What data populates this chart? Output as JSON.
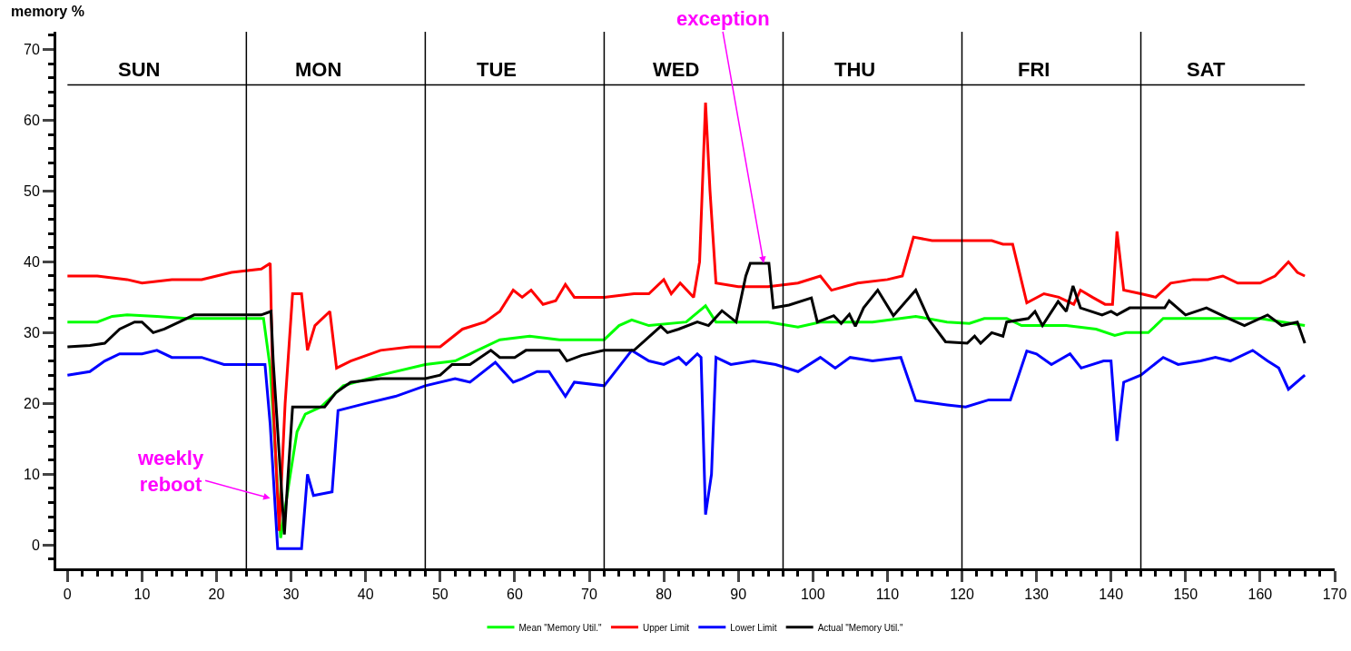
{
  "chart_data": {
    "type": "line",
    "ylabel": "memory %",
    "xlim": [
      -1.5,
      170
    ],
    "ylim": [
      -3.3,
      72.5
    ],
    "xticks": [
      0,
      10,
      20,
      30,
      40,
      50,
      60,
      70,
      80,
      90,
      100,
      110,
      120,
      130,
      140,
      150,
      160,
      170
    ],
    "yticks": [
      0,
      10,
      20,
      30,
      40,
      50,
      60,
      70
    ],
    "grid": false,
    "legend": "bottom",
    "marker": "none",
    "line_style": "solid",
    "ref_lines": [
      {
        "axis": "x",
        "value": 24
      },
      {
        "axis": "x",
        "value": 48
      },
      {
        "axis": "x",
        "value": 72
      },
      {
        "axis": "x",
        "value": 96
      },
      {
        "axis": "x",
        "value": 120
      },
      {
        "axis": "x",
        "value": 144
      },
      {
        "axis": "y",
        "value": 65
      }
    ],
    "annotations": [
      "SUN",
      "MON",
      "TUE",
      "WED",
      "THU",
      "FRI",
      "SAT",
      {
        "text": "weekly\nreboot",
        "x": 27.2,
        "y": 6.6
      },
      {
        "text": "exception",
        "x": 93.4,
        "y": 39.8
      }
    ],
    "series": [
      {
        "name": "Mean \"Memory Util.\"",
        "color": "#00ff00",
        "x": [
          0,
          4,
          6,
          8,
          12,
          16,
          20,
          26.3,
          27.2,
          28.6,
          29.9,
          30.8,
          31.9,
          34,
          37,
          42,
          48,
          52,
          55,
          58,
          62,
          66,
          72,
          74,
          75.7,
          78,
          83,
          85.6,
          87,
          94,
          98,
          101,
          108,
          113.8,
          118,
          121,
          123,
          126,
          128,
          134,
          138,
          140.5,
          142,
          145,
          147,
          152,
          160,
          166
        ],
        "values": [
          31.5,
          31.5,
          32.3,
          32.5,
          32.3,
          32,
          32,
          32,
          25,
          1,
          10,
          16,
          18.5,
          19.5,
          22.5,
          24,
          25.5,
          26,
          27.5,
          29,
          29.5,
          29,
          29,
          31,
          31.8,
          31,
          31.5,
          33.8,
          31.5,
          31.5,
          30.8,
          31.5,
          31.5,
          32.3,
          31.5,
          31.3,
          32,
          32,
          31,
          31,
          30.5,
          29.6,
          30,
          30,
          32,
          32,
          32,
          31
        ]
      },
      {
        "name": "Upper Limit",
        "color": "#ff0000",
        "x": [
          0,
          4,
          8,
          10,
          14,
          18,
          20,
          22,
          26,
          27.2,
          27.6,
          28.4,
          29.2,
          30.2,
          31.4,
          32.2,
          33.2,
          35.2,
          36.1,
          38,
          42,
          46,
          50,
          53,
          56,
          58,
          59.8,
          61,
          62.2,
          63.8,
          65.5,
          66.8,
          68,
          72,
          76,
          78,
          80,
          81,
          82.2,
          84,
          84.8,
          85.6,
          86.2,
          87,
          90,
          94,
          98,
          101,
          102.5,
          106,
          110,
          112,
          113.5,
          116,
          120,
          124,
          125.5,
          126.8,
          128.7,
          131,
          133,
          135,
          135.9,
          137.5,
          139.2,
          140.2,
          140.8,
          141.7,
          144,
          146,
          148,
          151,
          153,
          155,
          157,
          160,
          162,
          163.8,
          165,
          166
        ],
        "values": [
          38,
          38,
          37.5,
          37,
          37.5,
          37.5,
          38,
          38.5,
          39,
          39.8,
          20,
          2,
          20,
          35.5,
          35.5,
          27.5,
          31,
          33,
          25,
          26,
          27.5,
          28,
          28,
          30.5,
          31.5,
          33,
          36,
          35,
          36,
          34,
          34.5,
          36.8,
          35,
          35,
          35.5,
          35.5,
          37.5,
          35.5,
          37,
          35,
          40,
          62.5,
          50,
          37,
          36.5,
          36.5,
          37,
          38,
          36,
          37,
          37.5,
          38,
          43.5,
          43,
          43,
          43,
          42.5,
          42.5,
          34.2,
          35.5,
          35,
          34,
          36,
          35,
          34,
          34,
          44.3,
          36,
          35.5,
          35,
          37,
          37.5,
          37.5,
          38,
          37,
          37,
          38,
          40,
          38.5,
          38
        ]
      },
      {
        "name": "Lower Limit",
        "color": "#0000ff",
        "x": [
          0,
          3,
          5,
          7,
          10,
          12,
          14,
          18,
          21,
          26.5,
          27.2,
          28.2,
          31.4,
          32.2,
          33,
          35.5,
          36.3,
          40,
          44,
          48,
          52,
          54,
          57.4,
          59.8,
          61,
          63,
          64.6,
          66.8,
          68,
          72,
          75.7,
          78,
          80,
          82,
          83,
          84.5,
          85,
          85.6,
          86.4,
          87,
          89,
          92,
          95,
          98,
          101,
          103,
          105,
          108,
          111.8,
          113.8,
          118,
          120.5,
          123.6,
          126.5,
          128.7,
          130,
          132,
          134.5,
          136,
          139,
          140,
          140.8,
          141.7,
          144,
          147,
          149,
          152,
          154,
          156,
          159,
          161,
          162.5,
          163.8,
          166
        ],
        "values": [
          24,
          24.5,
          26,
          27,
          27,
          27.5,
          26.5,
          26.5,
          25.5,
          25.5,
          17,
          -0.5,
          -0.5,
          10,
          7,
          7.5,
          19,
          20,
          21,
          22.5,
          23.5,
          23,
          25.8,
          23,
          23.5,
          24.5,
          24.5,
          21,
          23,
          22.5,
          27.5,
          26,
          25.5,
          26.5,
          25.5,
          27,
          26.5,
          4.3,
          10,
          26.5,
          25.5,
          26,
          25.5,
          24.5,
          26.5,
          25,
          26.5,
          26,
          26.5,
          20.4,
          19.8,
          19.5,
          20.5,
          20.5,
          27.4,
          27,
          25.5,
          27,
          25,
          26,
          26,
          14.7,
          23,
          24,
          26.5,
          25.5,
          26,
          26.5,
          26,
          27.5,
          26,
          25,
          22,
          24
        ]
      },
      {
        "name": "Actual \"Memory Util.\"",
        "color": "#000000",
        "x": [
          0,
          3,
          5,
          7,
          9,
          10,
          11.5,
          13,
          15,
          17,
          26,
          27.3,
          27.6,
          29.1,
          29.6,
          30.2,
          34.5,
          36,
          38,
          42,
          48,
          50,
          51.6,
          54,
          56.8,
          58,
          60,
          61.5,
          66,
          67,
          69,
          72,
          76,
          79.6,
          80.5,
          82,
          84.5,
          86,
          87.8,
          89.7,
          91,
          91.6,
          94.1,
          94.7,
          96.8,
          99.8,
          100.6,
          102.8,
          103.8,
          104.9,
          105.7,
          106.8,
          108.7,
          110.8,
          113.8,
          115.6,
          117.8,
          120.7,
          121.7,
          122.5,
          124,
          125.5,
          126,
          128.9,
          129.8,
          130.8,
          132.9,
          134,
          134.9,
          135.9,
          138.8,
          140,
          140.8,
          142.5,
          147.2,
          147.8,
          150,
          152.8,
          155.8,
          157.9,
          161,
          162.9,
          165,
          166
        ],
        "values": [
          28,
          28.2,
          28.5,
          30.5,
          31.5,
          31.5,
          30,
          30.5,
          31.5,
          32.5,
          32.5,
          33,
          26,
          1.5,
          10,
          19.5,
          19.5,
          21.5,
          23,
          23.5,
          23.5,
          24,
          25.5,
          25.5,
          27.5,
          26.5,
          26.5,
          27.5,
          27.5,
          26,
          26.8,
          27.5,
          27.5,
          30.9,
          30,
          30.5,
          31.5,
          31,
          33.1,
          31.5,
          38,
          39.8,
          39.8,
          33.5,
          33.9,
          34.9,
          31.5,
          32.4,
          31.3,
          32.6,
          30.9,
          33.5,
          36,
          32.4,
          36,
          31.8,
          28.7,
          28.5,
          29.5,
          28.5,
          30,
          29.5,
          31.5,
          32,
          33,
          31,
          34.4,
          33,
          36.6,
          33.5,
          32.5,
          33,
          32.5,
          33.5,
          33.5,
          34.5,
          32.5,
          33.5,
          32,
          31,
          32.5,
          31,
          31.5,
          28.5
        ]
      }
    ]
  }
}
